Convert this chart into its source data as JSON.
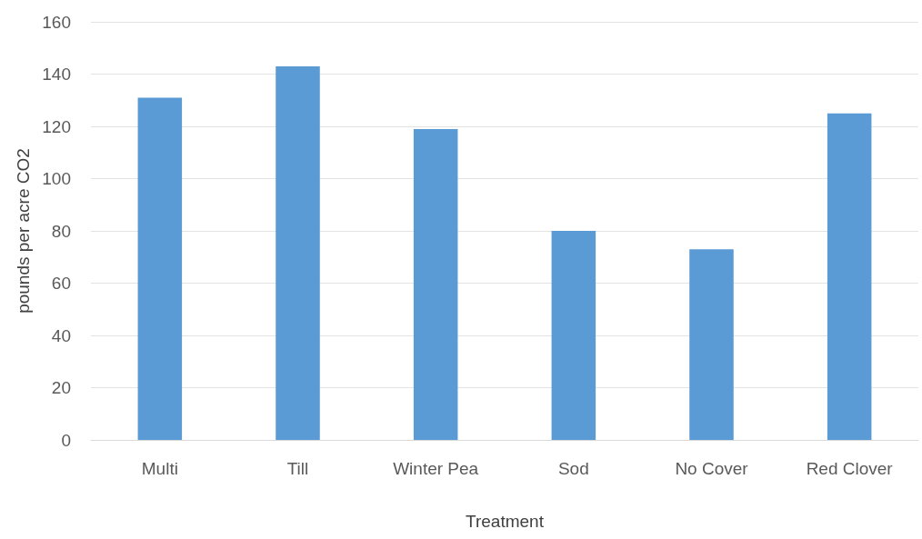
{
  "chart_data": {
    "type": "bar",
    "xlabel": "Treatment",
    "ylabel": "pounds per acre CO2",
    "categories": [
      "Multi",
      "Till",
      "Winter Pea",
      "Sod",
      "No Cover",
      "Red Clover"
    ],
    "values": [
      131,
      143,
      119,
      80,
      73,
      125
    ],
    "color": "#5b9bd5",
    "ylim": [
      0,
      160
    ],
    "yticks": [
      0,
      20,
      40,
      60,
      80,
      100,
      120,
      140,
      160
    ],
    "grid": "y"
  }
}
